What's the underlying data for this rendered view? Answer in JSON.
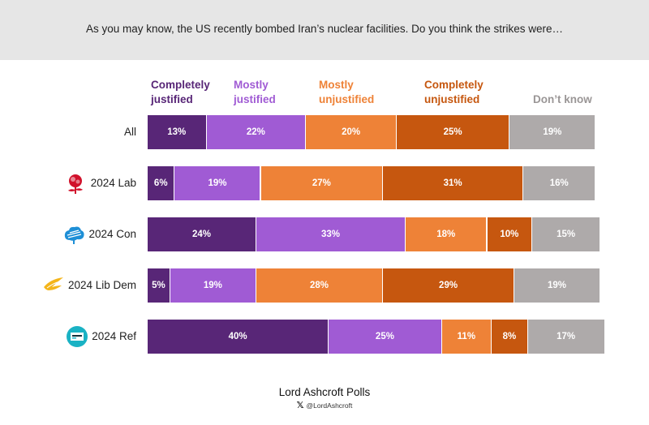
{
  "question": "As you may know, the US recently bombed Iran’s nuclear facilities. Do you think the strikes were…",
  "colors": {
    "completely_justified": "#582677",
    "mostly_justified": "#a05bd4",
    "mostly_unjustified": "#ee8237",
    "completely_unjustified": "#c6570f",
    "dont_know": "#aeaaaa"
  },
  "chart_data": {
    "type": "bar",
    "orientation": "horizontal",
    "stacked": true,
    "percent": true,
    "legend_position": "top",
    "categories": [
      "All",
      "2024 Lab",
      "2024 Con",
      "2024 Lib Dem",
      "2024 Ref"
    ],
    "series": [
      {
        "name": "Completely justified",
        "values": [
          13,
          6,
          24,
          5,
          40
        ]
      },
      {
        "name": "Mostly justified",
        "values": [
          22,
          19,
          33,
          19,
          25
        ]
      },
      {
        "name": "Mostly unjustified",
        "values": [
          20,
          27,
          18,
          28,
          11
        ]
      },
      {
        "name": "Completely unjustified",
        "values": [
          25,
          31,
          10,
          29,
          8
        ]
      },
      {
        "name": "Don’t know",
        "values": [
          19,
          16,
          15,
          19,
          17
        ]
      }
    ],
    "legend_labels": [
      [
        "Completely",
        "justified"
      ],
      [
        "Mostly",
        "justified"
      ],
      [
        "Mostly",
        "unjustified"
      ],
      [
        "Completely",
        "unjustified"
      ],
      [
        "Don’t know"
      ]
    ],
    "icons": [
      null,
      "labour-rose-icon",
      "conservative-tree-icon",
      "libdem-bird-icon",
      "reform-logo-icon"
    ]
  },
  "footer": {
    "title": "Lord Ashcroft Polls",
    "handle": "@LordAshcroft",
    "icon": "x-logo-icon"
  }
}
